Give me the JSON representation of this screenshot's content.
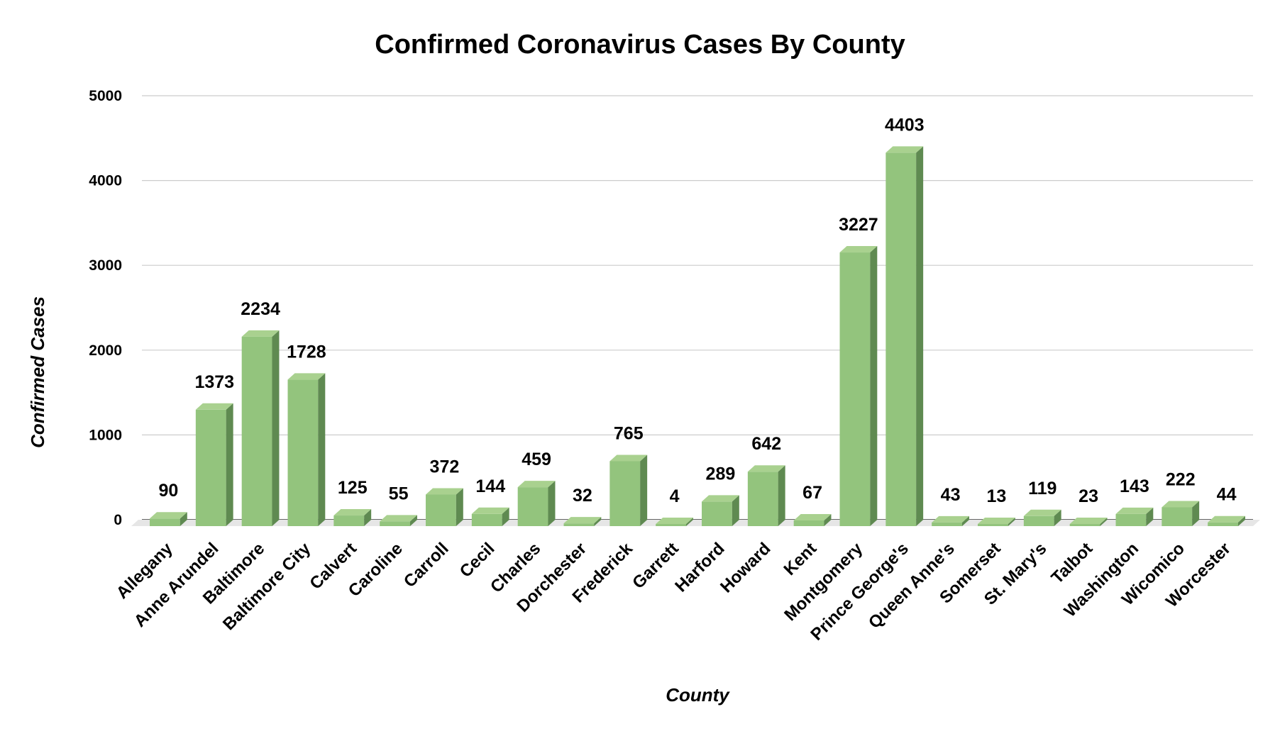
{
  "chart_data": {
    "type": "bar",
    "title": "Confirmed Coronavirus Cases By County",
    "xlabel": "County",
    "ylabel": "Confirmed Cases",
    "ylim": [
      0,
      5000
    ],
    "yticks": [
      0,
      1000,
      2000,
      3000,
      4000,
      5000
    ],
    "grid": true,
    "style": "3d",
    "colors": {
      "bar_front": "#93c47d",
      "bar_top": "#a9d18f",
      "bar_side": "#5f8a51",
      "floor": "#e6e6e6",
      "gridline": "#cccccc"
    },
    "categories": [
      "Allegany",
      "Anne Arundel",
      "Baltimore",
      "Baltimore City",
      "Calvert",
      "Caroline",
      "Carroll",
      "Cecil",
      "Charles",
      "Dorchester",
      "Frederick",
      "Garrett",
      "Harford",
      "Howard",
      "Kent",
      "Montgomery",
      "Prince George's",
      "Queen Anne's",
      "Somerset",
      "St. Mary's",
      "Talbot",
      "Washington",
      "Wicomico",
      "Worcester"
    ],
    "values": [
      90,
      1373,
      2234,
      1728,
      125,
      55,
      372,
      144,
      459,
      32,
      765,
      4,
      289,
      642,
      67,
      3227,
      4403,
      43,
      13,
      119,
      23,
      143,
      222,
      44
    ]
  }
}
